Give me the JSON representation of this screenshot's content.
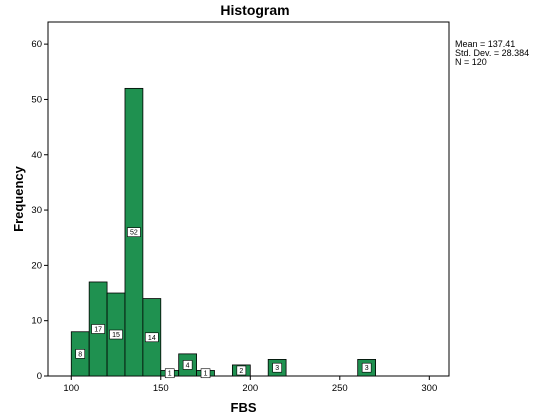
{
  "chart_data": {
    "type": "bar",
    "title": "Histogram",
    "xlabel": "FBS",
    "ylabel": "Frequency",
    "xlim": [
      87,
      311
    ],
    "ylim": [
      0,
      64
    ],
    "x_ticks": [
      100,
      150,
      200,
      250,
      300
    ],
    "y_ticks": [
      0,
      10,
      20,
      30,
      40,
      50,
      60
    ],
    "bar_color": "#1f9150",
    "bar_edge_color": "#000000",
    "grid": false,
    "bins": [
      {
        "start": 100,
        "end": 110,
        "value": 8,
        "label": "8"
      },
      {
        "start": 110,
        "end": 120,
        "value": 17,
        "label": "17"
      },
      {
        "start": 120,
        "end": 130,
        "value": 15,
        "label": "15"
      },
      {
        "start": 130,
        "end": 140,
        "value": 52,
        "label": "52"
      },
      {
        "start": 140,
        "end": 150,
        "value": 14,
        "label": "14"
      },
      {
        "start": 150,
        "end": 160,
        "value": 1,
        "label": "1"
      },
      {
        "start": 160,
        "end": 170,
        "value": 4,
        "label": "4"
      },
      {
        "start": 170,
        "end": 180,
        "value": 1,
        "label": "1"
      },
      {
        "start": 190,
        "end": 200,
        "value": 2,
        "label": "2"
      },
      {
        "start": 210,
        "end": 220,
        "value": 3,
        "label": "3"
      },
      {
        "start": 260,
        "end": 270,
        "value": 3,
        "label": "3"
      }
    ],
    "stats": {
      "mean": "Mean = 137.41",
      "std": "Std. Dev. = 28.384",
      "n": "N = 120"
    }
  }
}
